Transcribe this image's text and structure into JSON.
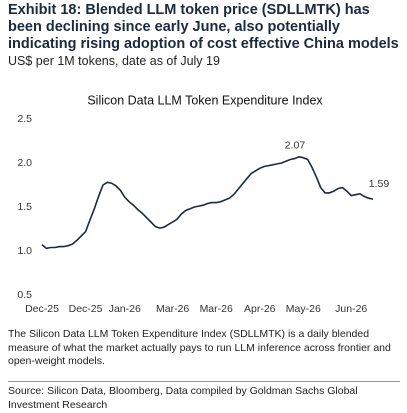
{
  "header": {
    "title": "Exhibit 18: Blended LLM token price (SDLLMTK) has been declining since early June, also potentially indicating rising adoption of cost effective China models",
    "subtitle": "US$ per 1M tokens, date as of July 19"
  },
  "chart_data": {
    "type": "line",
    "title": "Silicon Data LLM Token Expenditure Index",
    "categories": [
      "Dec-25",
      null,
      null,
      null,
      null,
      null,
      null,
      null,
      null,
      null,
      "Dec-25",
      null,
      null,
      null,
      null,
      null,
      null,
      null,
      null,
      "Jan-26",
      null,
      null,
      null,
      null,
      null,
      null,
      null,
      null,
      null,
      null,
      "Mar-26",
      null,
      null,
      null,
      null,
      null,
      null,
      null,
      null,
      null,
      "Mar-26",
      null,
      null,
      null,
      null,
      null,
      null,
      null,
      null,
      null,
      "Apr-26",
      null,
      null,
      null,
      null,
      null,
      null,
      null,
      null,
      null,
      "May-26",
      null,
      null,
      null,
      null,
      null,
      null,
      null,
      null,
      null,
      null,
      "Jun-26",
      null,
      null,
      null,
      null,
      null
    ],
    "series": [
      {
        "name": "Silicon Data LLM Token Expenditure Index",
        "color": "#1b2a3e",
        "values": [
          1.07,
          1.03,
          1.04,
          1.04,
          1.05,
          1.05,
          1.06,
          1.08,
          1.12,
          1.17,
          1.22,
          1.35,
          1.48,
          1.62,
          1.75,
          1.78,
          1.77,
          1.74,
          1.69,
          1.61,
          1.56,
          1.52,
          1.47,
          1.43,
          1.38,
          1.33,
          1.28,
          1.26,
          1.27,
          1.3,
          1.33,
          1.36,
          1.42,
          1.46,
          1.48,
          1.5,
          1.51,
          1.52,
          1.54,
          1.55,
          1.55,
          1.56,
          1.58,
          1.6,
          1.64,
          1.7,
          1.76,
          1.82,
          1.88,
          1.91,
          1.94,
          1.96,
          1.97,
          1.98,
          1.99,
          2.0,
          2.02,
          2.04,
          2.05,
          2.07,
          2.06,
          2.04,
          1.95,
          1.84,
          1.72,
          1.66,
          1.66,
          1.68,
          1.71,
          1.72,
          1.68,
          1.63,
          1.64,
          1.65,
          1.62,
          1.6,
          1.59
        ]
      }
    ],
    "ylim": [
      0.5,
      2.5
    ],
    "yticks": [
      0.5,
      {
        "value": 1,
        "label": "1.0"
      },
      1.5,
      {
        "value": 2,
        "label": "2.0"
      },
      2.5
    ],
    "grid": false
  },
  "note": "The Silicon Data LLM Token Expenditure Index (SDLLMTK) is a daily blended measure of what the market actually pays to run LLM inference across frontier and open-weight models.",
  "source": "Source: Silicon Data, Bloomberg, Data compiled by Goldman Sachs Global Investment Research"
}
